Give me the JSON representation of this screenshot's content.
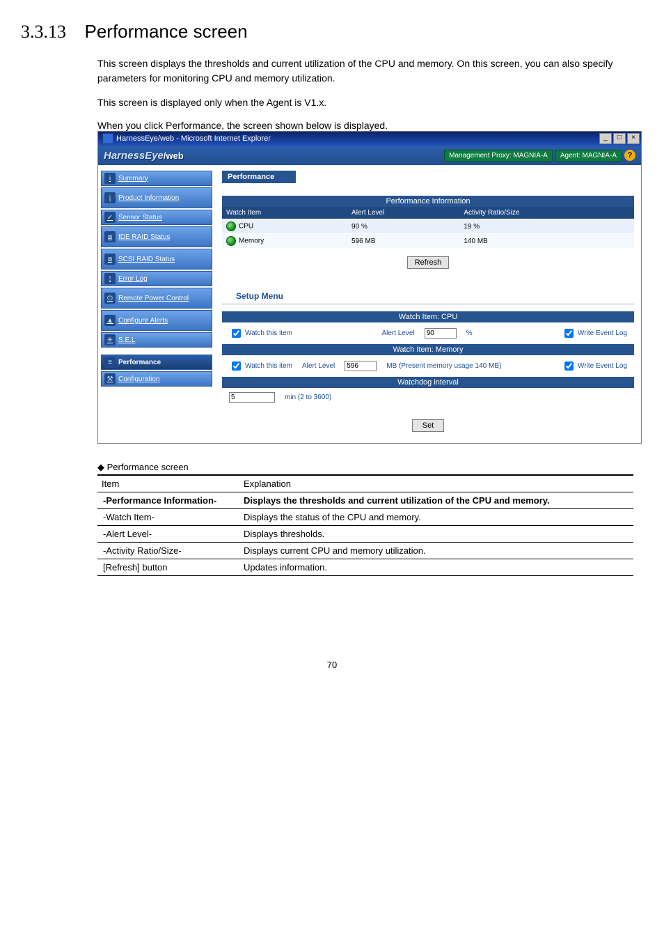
{
  "heading": {
    "number": "3.3.13",
    "title": "Performance screen"
  },
  "paragraphs": {
    "p1": "This screen displays the thresholds and current utilization of the CPU and memory.    On this screen, you can also specify parameters for monitoring CPU and memory utilization.",
    "p2": "This screen is displayed only when the Agent is V1.x.",
    "caption": "When you click Performance, the screen shown below is displayed."
  },
  "ie": {
    "title": "HarnessEye/web - Microsoft Internet Explorer",
    "min": "_",
    "max": "□",
    "close": "×"
  },
  "header": {
    "logo_main": "HarnessEye",
    "logo_web": "/web",
    "proxy_label": "Management Proxy: MAGNIA-A",
    "agent_label": "Agent: MAGNIA-A",
    "help": "?"
  },
  "nav": {
    "items": [
      {
        "label": "Summary",
        "icon": "i"
      },
      {
        "label": "Product Information",
        "icon": "i",
        "tall": true
      },
      {
        "label": "Sensor Status",
        "icon": "✓"
      },
      {
        "label": "IDE RAID Status",
        "icon": "⧈",
        "tall": true
      },
      {
        "label": "SCSI RAID Status",
        "icon": "⧈",
        "tall": true
      },
      {
        "label": "Error Log",
        "icon": "!"
      },
      {
        "label": "Remote Power Control",
        "icon": "⏻",
        "tall": true
      },
      {
        "label": "Configure Alerts",
        "icon": "▲",
        "tall": true
      },
      {
        "label": "S.E.L",
        "icon": "✳"
      },
      {
        "label": "Performance",
        "icon": "≡",
        "active": true
      },
      {
        "label": "Configuration",
        "icon": "⚒"
      }
    ]
  },
  "perf": {
    "panel_title": "Performance",
    "info_header": "Performance Information",
    "columns": [
      "Watch Item",
      "Alert Level",
      "Activity Ratio/Size"
    ],
    "rows": [
      {
        "item": "CPU",
        "level": "90 %",
        "ratio": "19 %"
      },
      {
        "item": "Memory",
        "level": "596 MB",
        "ratio": "140 MB"
      }
    ],
    "refresh": "Refresh",
    "setup_label": "Setup Menu",
    "cpu_bar": "Watch Item: CPU",
    "mem_bar": "Watch Item: Memory",
    "watchdog_bar": "Watchdog interval",
    "watch_this": "Watch this item",
    "alert_level": "Alert Level",
    "cpu_alert_value": "90",
    "cpu_unit": "%",
    "mem_alert_value": "596",
    "mem_unit_prefix": "MB (Present memory usage",
    "mem_present": "140",
    "mem_unit_suffix": "MB)",
    "write_log": "Write Event Log",
    "watchdog_value": "5",
    "watchdog_unit": "min (2 to 3600)",
    "set": "Set"
  },
  "doc": {
    "marker": "◆ Performance screen",
    "head_item": "Item",
    "head_exp": "Explanation",
    "rows": [
      {
        "item": "-Performance Information-",
        "exp": "Displays the thresholds and current utilization of the CPU and memory.",
        "bold": true
      },
      {
        "item": "-Watch Item-",
        "exp": "Displays the status of the CPU and memory."
      },
      {
        "item": "-Alert Level-",
        "exp": "Displays thresholds."
      },
      {
        "item": "-Activity Ratio/Size-",
        "exp": "Displays current CPU and memory utilization."
      },
      {
        "item": "[Refresh] button",
        "exp": "Updates information."
      }
    ]
  },
  "page_number": "70"
}
